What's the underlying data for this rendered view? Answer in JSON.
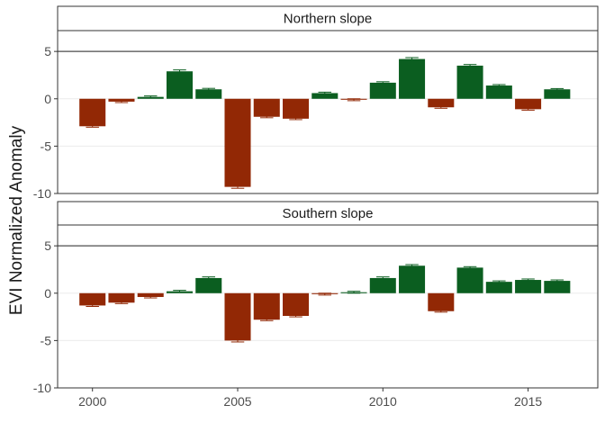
{
  "chart_data": {
    "type": "bar",
    "ylabel": "EVI Normalized Anomaly",
    "xlabel": "",
    "xlim": [
      1998.8,
      2017.4
    ],
    "ylim": [
      -10,
      7.2
    ],
    "x_ticks": [
      2000,
      2005,
      2010,
      2015
    ],
    "y_ticks": [
      -10,
      -5,
      0,
      5
    ],
    "reference_line": 5,
    "grid": true,
    "colors": {
      "negative": "#922805",
      "positive": "#0b5e20",
      "grid": "#ebebeb",
      "border": "#333333",
      "strip_bg": "#ffffff"
    },
    "panels": [
      {
        "title": "Northern slope",
        "years": [
          2000,
          2001,
          2002,
          2003,
          2004,
          2005,
          2006,
          2007,
          2008,
          2009,
          2010,
          2011,
          2012,
          2013,
          2014,
          2015,
          2016
        ],
        "values": [
          -2.9,
          -0.3,
          0.2,
          2.9,
          1.0,
          -9.3,
          -1.9,
          -2.1,
          0.6,
          -0.1,
          1.7,
          4.2,
          -0.9,
          3.5,
          1.4,
          -1.1,
          1.0
        ],
        "errors": [
          0.1,
          0.1,
          0.1,
          0.15,
          0.1,
          0.15,
          0.1,
          0.1,
          0.1,
          0.1,
          0.1,
          0.15,
          0.1,
          0.12,
          0.1,
          0.1,
          0.08
        ]
      },
      {
        "title": "Southern slope",
        "years": [
          2000,
          2001,
          2002,
          2003,
          2004,
          2005,
          2006,
          2007,
          2008,
          2009,
          2010,
          2011,
          2012,
          2013,
          2014,
          2015,
          2016
        ],
        "values": [
          -1.3,
          -1.0,
          -0.4,
          0.2,
          1.6,
          -5.0,
          -2.8,
          -2.4,
          -0.1,
          0.1,
          1.6,
          2.9,
          -1.9,
          2.7,
          1.2,
          1.4,
          1.3
        ],
        "errors": [
          0.1,
          0.1,
          0.1,
          0.1,
          0.12,
          0.15,
          0.1,
          0.1,
          0.1,
          0.1,
          0.12,
          0.12,
          0.1,
          0.1,
          0.1,
          0.1,
          0.1
        ]
      }
    ]
  }
}
